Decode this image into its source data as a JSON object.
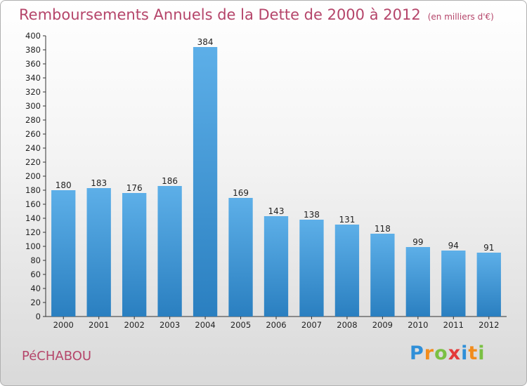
{
  "title": "Remboursements Annuels de la Dette de 2000 à 2012",
  "unit_note": "(en milliers d'€)",
  "town": "PéCHABOU",
  "logo": {
    "letters": [
      "P",
      "r",
      "o",
      "x",
      "i",
      "t",
      "i"
    ],
    "colors": [
      "#2f8fd8",
      "#f28c1c",
      "#7ac043",
      "#e43a3a",
      "#2f8fd8",
      "#f28c1c",
      "#7ac043"
    ]
  },
  "colors": {
    "bar_top": "#5dafe8",
    "bar_bottom": "#2a7fc0",
    "title": "#b5456a"
  },
  "chart_data": {
    "type": "bar",
    "categories": [
      "2000",
      "2001",
      "2002",
      "2003",
      "2004",
      "2005",
      "2006",
      "2007",
      "2008",
      "2009",
      "2010",
      "2011",
      "2012"
    ],
    "values": [
      180,
      183,
      176,
      186,
      384,
      169,
      143,
      138,
      131,
      118,
      99,
      94,
      91
    ],
    "ylim": [
      0,
      400
    ],
    "ystep": 20,
    "grid": false,
    "data_labels": true
  }
}
